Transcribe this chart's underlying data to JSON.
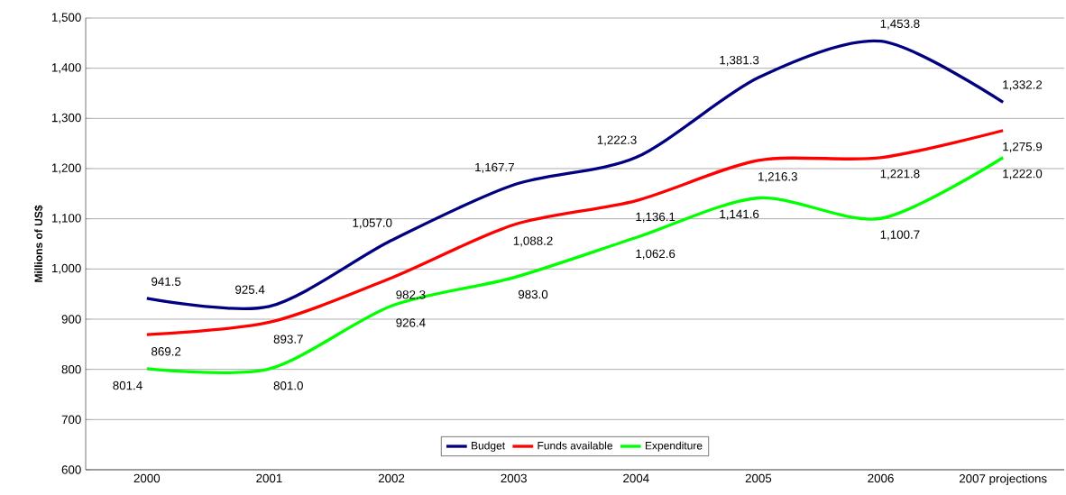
{
  "chart_data": {
    "type": "line",
    "ylabel": "Millions of US$",
    "categories": [
      "2000",
      "2001",
      "2002",
      "2003",
      "2004",
      "2005",
      "2006",
      "2007 projections"
    ],
    "series": [
      {
        "name": "Budget",
        "color": "#000080",
        "values": [
          941.5,
          925.4,
          1057.0,
          1167.7,
          1222.3,
          1381.3,
          1453.8,
          1332.2
        ],
        "value_labels": [
          "941.5",
          "925.4",
          "1,057.0",
          "1,167.7",
          "1,222.3",
          "1,381.3",
          "1,453.8",
          "1,332.2"
        ]
      },
      {
        "name": "Funds available",
        "color": "#ff0000",
        "values": [
          869.2,
          893.7,
          982.3,
          1088.2,
          1136.1,
          1216.3,
          1221.8,
          1275.9
        ],
        "value_labels": [
          "869.2",
          "893.7",
          "982.3",
          "1,088.2",
          "1,136.1",
          "1,216.3",
          "1,221.8",
          "1,275.9"
        ]
      },
      {
        "name": "Expenditure",
        "color": "#00ff00",
        "values": [
          801.4,
          801.0,
          926.4,
          983.0,
          1062.6,
          1141.6,
          1100.7,
          1222.0
        ],
        "value_labels": [
          "801.4",
          "801.0",
          "926.4",
          "983.0",
          "1,062.6",
          "1,141.6",
          "1,100.7",
          "1,222.0"
        ]
      }
    ],
    "ylim": [
      600,
      1500
    ],
    "yticks": [
      600,
      700,
      800,
      900,
      {
        "value": 1000,
        "label": "1,000"
      },
      {
        "value": 1100,
        "label": "1,100"
      },
      {
        "value": 1200,
        "label": "1,200"
      },
      {
        "value": 1300,
        "label": "1,300"
      },
      {
        "value": 1400,
        "label": "1,400"
      },
      {
        "value": 1500,
        "label": "1,500"
      }
    ],
    "grid": "y",
    "legend": "bottom",
    "marker": "none",
    "line_style": "solid"
  }
}
